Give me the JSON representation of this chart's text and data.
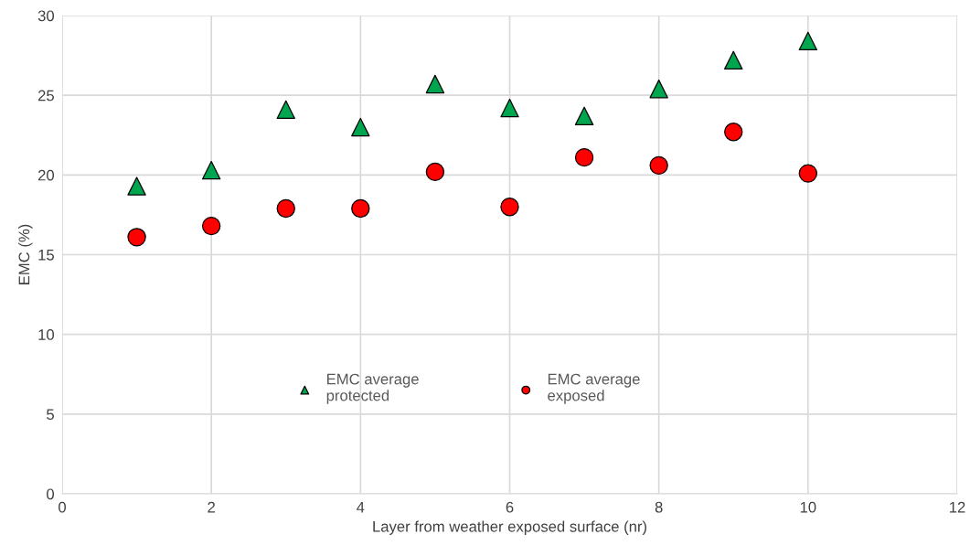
{
  "chart_data": {
    "type": "scatter",
    "xlabel": "Layer from weather exposed surface (nr)",
    "ylabel": "EMC (%)",
    "xlim": [
      0,
      12
    ],
    "xticks": [
      0,
      2,
      4,
      6,
      8,
      10,
      12
    ],
    "ylim": [
      0,
      30
    ],
    "yticks": [
      0,
      5,
      10,
      15,
      20,
      25,
      30
    ],
    "grid": true,
    "legend": "center",
    "x": [
      1,
      2,
      3,
      4,
      5,
      6,
      7,
      8,
      9,
      10
    ],
    "series": [
      {
        "name": "EMC average\nprotected",
        "color": "#00a550",
        "marker": "triangle",
        "values": [
          19.3,
          20.3,
          24.1,
          23.0,
          25.7,
          24.2,
          23.7,
          25.4,
          27.2,
          28.4
        ]
      },
      {
        "name": "EMC average\nexposed",
        "color": "#ff0000",
        "marker": "circle",
        "values": [
          16.1,
          16.8,
          17.9,
          17.9,
          20.2,
          18.0,
          21.1,
          20.6,
          22.7,
          20.1
        ]
      }
    ]
  }
}
